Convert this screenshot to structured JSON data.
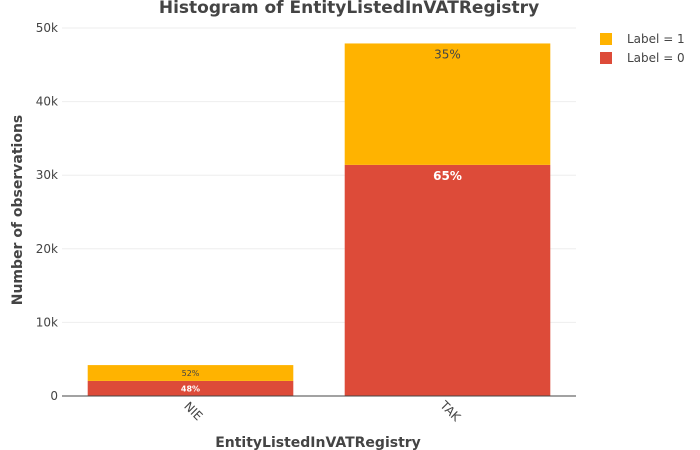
{
  "chart_data": {
    "type": "bar",
    "stacked": true,
    "title": "Histogram of EntityListedInVATRegistry",
    "xlabel": "EntityListedInVATRegistry",
    "ylabel": "Number of observations",
    "categories": [
      "NIE",
      "TAK"
    ],
    "ylim": [
      0,
      50000
    ],
    "yticks": [
      0,
      10000,
      20000,
      30000,
      40000,
      50000
    ],
    "ytick_labels": [
      "0",
      "10k",
      "20k",
      "30k",
      "40k",
      "50k"
    ],
    "grid": true,
    "legend_position": "top-right",
    "series": [
      {
        "name": "Label = 0",
        "color": "#dd4b39",
        "values": [
          2050,
          31400
        ],
        "data_labels": [
          "48%",
          "65%"
        ],
        "label_color": "#ffffff"
      },
      {
        "name": "Label = 1",
        "color": "#ffb300",
        "values": [
          2150,
          16500
        ],
        "data_labels": [
          "52%",
          "35%"
        ],
        "label_color": "#444444"
      }
    ],
    "legend_order": [
      "Label = 1",
      "Label = 0"
    ]
  }
}
